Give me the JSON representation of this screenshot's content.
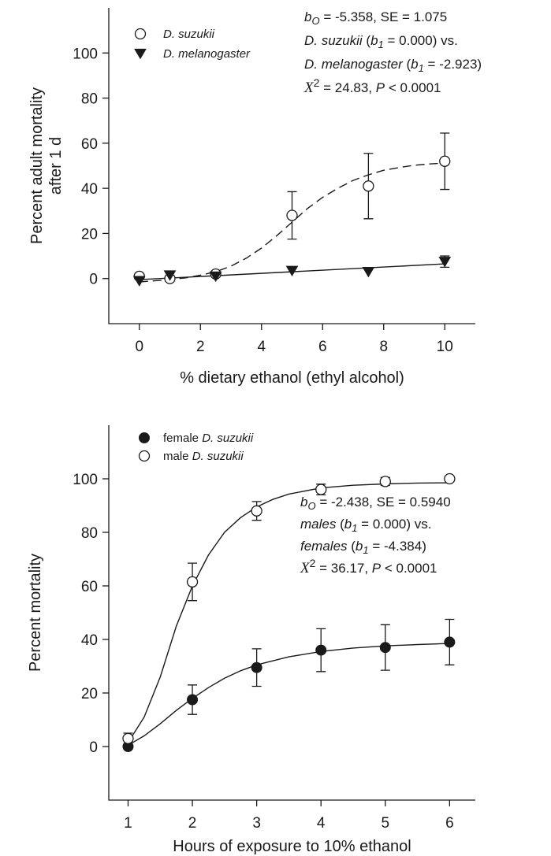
{
  "chart_data": [
    {
      "type": "scatter",
      "xlabel": "% dietary ethanol (ethyl alcohol)",
      "ylabel_lines": [
        "Percent adult mortality",
        "after 1 d"
      ],
      "xlim": [
        -1,
        11
      ],
      "ylim": [
        -20,
        120
      ],
      "xticks": [
        0,
        2,
        4,
        6,
        8,
        10
      ],
      "yticks": [
        0,
        20,
        40,
        60,
        80,
        100
      ],
      "grid": false,
      "legend_position": "top-left",
      "series": [
        {
          "name": "D. suzukii",
          "marker": "open-circle",
          "fit_style": "dashed",
          "x": [
            0,
            1,
            2.5,
            5,
            7.5,
            10
          ],
          "y": [
            1,
            0,
            2,
            28,
            41,
            52
          ],
          "error": [
            0,
            0,
            0,
            10.5,
            14.5,
            12.5
          ]
        },
        {
          "name": "D. melanogaster",
          "marker": "filled-triangle-down",
          "fit_style": "solid",
          "x": [
            0,
            1,
            2.5,
            5,
            7.5,
            10
          ],
          "y": [
            -1,
            1.5,
            1,
            3.5,
            3,
            7.5
          ],
          "error": [
            0,
            0,
            0,
            0,
            0,
            2.5
          ]
        }
      ],
      "fit_curves": [
        {
          "series": "D. suzukii",
          "x": [
            0,
            0.5,
            1,
            1.5,
            2,
            2.5,
            3,
            3.5,
            4,
            4.5,
            5,
            5.5,
            6,
            6.5,
            7,
            7.5,
            8,
            8.5,
            9,
            9.5,
            10
          ],
          "y": [
            -1.5,
            -1,
            -0.5,
            0.3,
            1.5,
            3,
            5.5,
            9,
            13.5,
            19,
            25,
            31,
            36,
            40,
            43.5,
            46,
            48,
            49.2,
            50.2,
            50.8,
            51.2
          ]
        },
        {
          "series": "D. melanogaster",
          "x": [
            0,
            10
          ],
          "y": [
            -0.5,
            6.5
          ]
        }
      ],
      "annotation_lines": [
        [
          {
            "t": "b",
            "s": "ital"
          },
          {
            "t": "O",
            "s": "ital-sub"
          },
          {
            "t": " = -5.358, SE = 1.075",
            "s": "normal"
          }
        ],
        [
          {
            "t": "D. suzukii",
            "s": "ital"
          },
          {
            "t": " (",
            "s": "normal"
          },
          {
            "t": "b",
            "s": "ital"
          },
          {
            "t": "1",
            "s": "ital-sub"
          },
          {
            "t": " = 0.000)  vs.",
            "s": "normal"
          }
        ],
        [
          {
            "t": "D. melanogaster",
            "s": "ital"
          },
          {
            "t": " (",
            "s": "normal"
          },
          {
            "t": "b",
            "s": "ital"
          },
          {
            "t": "1",
            "s": "ital-sub"
          },
          {
            "t": " = -2.923)",
            "s": "normal"
          }
        ],
        [
          {
            "t": "X",
            "s": "serif-ital"
          },
          {
            "t": "2",
            "s": "sup"
          },
          {
            "t": " = 24.83, ",
            "s": "normal"
          },
          {
            "t": "P",
            "s": "ital"
          },
          {
            "t": " < 0.0001",
            "s": "normal"
          }
        ]
      ]
    },
    {
      "type": "scatter",
      "xlabel": "Hours of exposure to 10% ethanol",
      "ylabel_lines": [
        "Percent mortality"
      ],
      "xlim": [
        0.7,
        6.4
      ],
      "ylim": [
        -20,
        120
      ],
      "xticks": [
        1,
        2,
        3,
        4,
        5,
        6
      ],
      "yticks": [
        0,
        20,
        40,
        60,
        80,
        100
      ],
      "grid": false,
      "legend_position": "top-left",
      "series": [
        {
          "name": "female D. suzukii",
          "marker": "filled-circle",
          "fit_style": "solid",
          "x": [
            1,
            2,
            3,
            4,
            5,
            6
          ],
          "y": [
            0,
            17.5,
            29.5,
            36,
            37,
            39
          ],
          "error": [
            0,
            5.5,
            7,
            8,
            8.5,
            8.5
          ]
        },
        {
          "name": "male D. suzukii",
          "marker": "open-circle",
          "fit_style": "solid",
          "x": [
            1,
            2,
            3,
            4,
            5,
            6
          ],
          "y": [
            3,
            61.5,
            88,
            96,
            99,
            100
          ],
          "error": [
            2,
            7,
            3.5,
            2,
            1.5,
            0
          ]
        }
      ],
      "fit_curves": [
        {
          "series": "female D. suzukii",
          "x": [
            1,
            1.25,
            1.5,
            1.75,
            2,
            2.25,
            2.5,
            2.75,
            3,
            3.5,
            4,
            4.5,
            5,
            5.5,
            6
          ],
          "y": [
            0.5,
            4,
            8.5,
            13.5,
            18,
            22,
            25.5,
            28.3,
            30.5,
            33.5,
            35.5,
            36.8,
            37.6,
            38.1,
            38.5
          ]
        },
        {
          "series": "male D. suzukii",
          "x": [
            1,
            1.25,
            1.5,
            1.75,
            2,
            2.25,
            2.5,
            2.75,
            3,
            3.25,
            3.5,
            4,
            4.5,
            5,
            5.5,
            6
          ],
          "y": [
            1.5,
            11,
            26,
            45,
            60,
            71.5,
            80,
            85.5,
            89.5,
            92.3,
            94.3,
            96.6,
            97.6,
            98.1,
            98.4,
            98.5
          ]
        }
      ],
      "annotation_lines": [
        [
          {
            "t": "b",
            "s": "ital"
          },
          {
            "t": "O",
            "s": "ital-sub"
          },
          {
            "t": " = -2.438, SE = 0.5940",
            "s": "normal"
          }
        ],
        [
          {
            "t": "males",
            "s": "ital"
          },
          {
            "t": " (",
            "s": "normal"
          },
          {
            "t": "b",
            "s": "ital"
          },
          {
            "t": "1",
            "s": "ital-sub"
          },
          {
            "t": " = 0.000)  vs.",
            "s": "normal"
          }
        ],
        [
          {
            "t": "females",
            "s": "ital"
          },
          {
            "t": " (",
            "s": "normal"
          },
          {
            "t": "b",
            "s": "ital"
          },
          {
            "t": "1",
            "s": "ital-sub"
          },
          {
            "t": " = -4.384)",
            "s": "normal"
          }
        ],
        [
          {
            "t": "X",
            "s": "serif-ital"
          },
          {
            "t": "2",
            "s": "sup"
          },
          {
            "t": " = 36.17, ",
            "s": "normal"
          },
          {
            "t": "P",
            "s": "ital"
          },
          {
            "t": " < 0.0001",
            "s": "normal"
          }
        ]
      ]
    }
  ]
}
